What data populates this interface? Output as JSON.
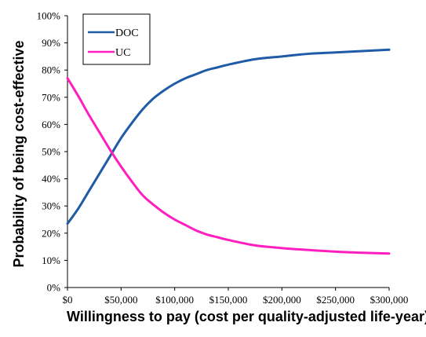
{
  "chart_data": {
    "type": "line",
    "xlabel": "Willingness to pay (cost per quality-adjusted life-year)",
    "ylabel": "Probability of being cost-effective",
    "xlim": [
      0,
      300000
    ],
    "ylim": [
      0,
      100
    ],
    "x_ticks": [
      "$0",
      "$50,000",
      "$100,000",
      "$150,000",
      "$200,000",
      "$250,000",
      "$300,000"
    ],
    "y_ticks": [
      "0%",
      "10%",
      "20%",
      "30%",
      "40%",
      "50%",
      "60%",
      "70%",
      "80%",
      "90%",
      "100%"
    ],
    "grid": false,
    "legend_position": "top-left",
    "x": [
      0,
      10000,
      20000,
      30000,
      40000,
      50000,
      60000,
      70000,
      80000,
      90000,
      100000,
      110000,
      120000,
      130000,
      140000,
      150000,
      175000,
      200000,
      225000,
      250000,
      275000,
      300000
    ],
    "series": [
      {
        "name": "DOC",
        "color": "#1f5ba6",
        "values": [
          23.5,
          29,
          35.5,
          42,
          48.5,
          55,
          60.5,
          65.5,
          69.5,
          72.5,
          75,
          77,
          78.5,
          80,
          81,
          82,
          84,
          85,
          86,
          86.5,
          87,
          87.5
        ]
      },
      {
        "name": "UC",
        "color": "#ff1fbf",
        "values": [
          77,
          70.5,
          63.5,
          57,
          50.5,
          44.5,
          39,
          34,
          30.5,
          27.5,
          25,
          23,
          21,
          19.5,
          18.5,
          17.5,
          15.5,
          14.5,
          13.8,
          13.2,
          12.8,
          12.5
        ]
      }
    ]
  }
}
